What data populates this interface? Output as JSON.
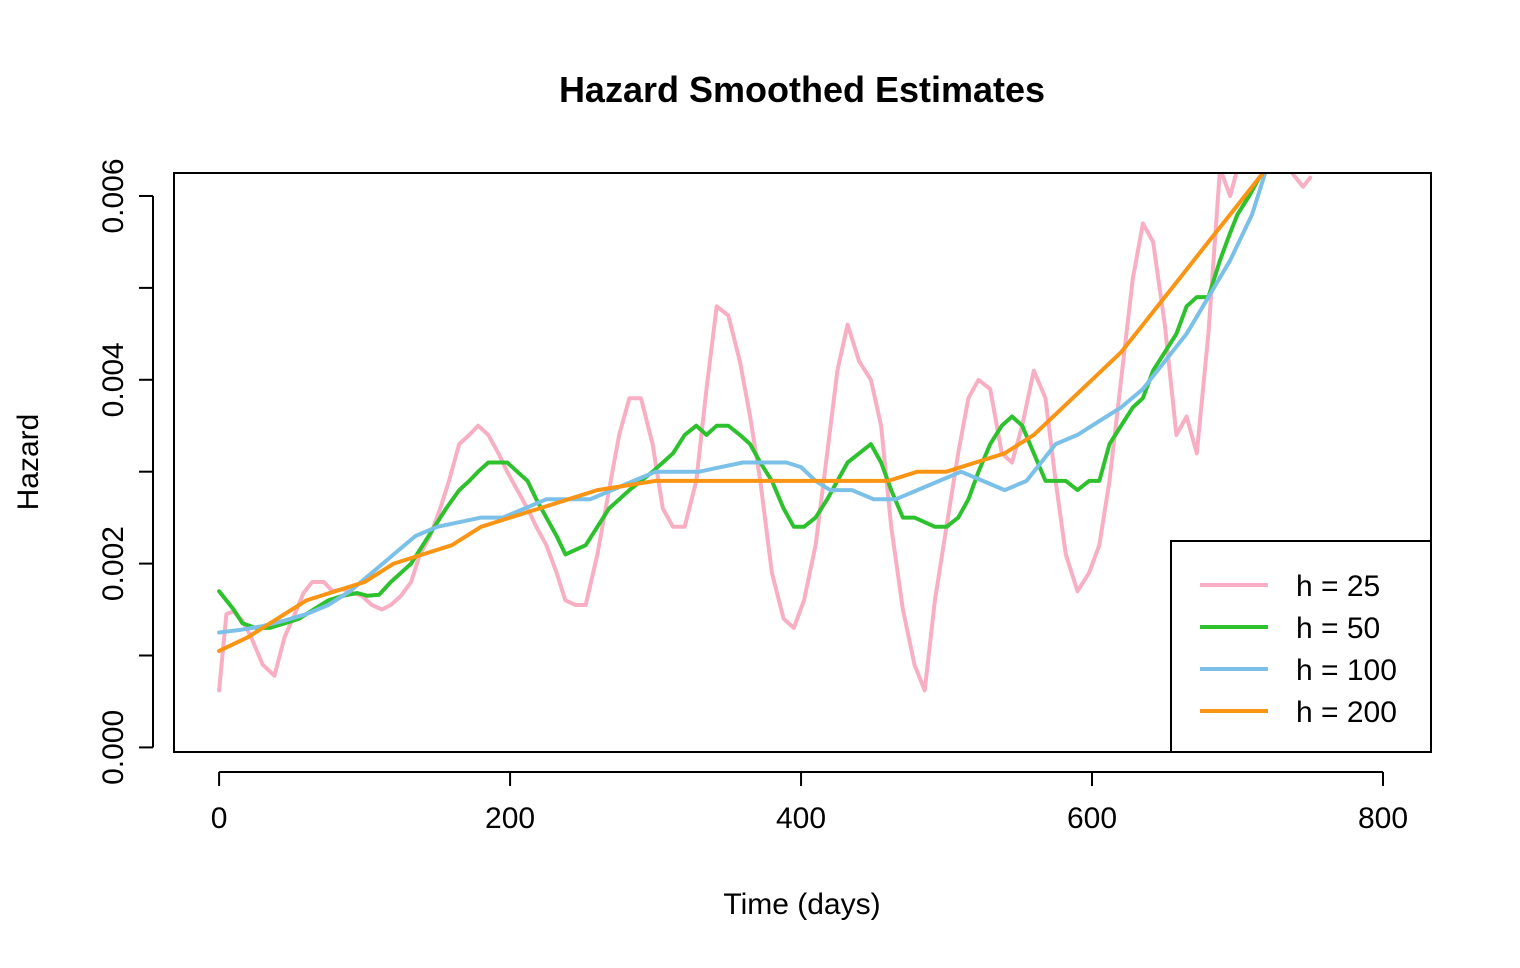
{
  "chart_data": {
    "type": "line",
    "title": "Hazard Smoothed Estimates",
    "xlabel": "Time (days)",
    "ylabel": "Hazard",
    "xlim": [
      -31,
      833
    ],
    "ylim": [
      -5e-05,
      0.00625
    ],
    "x_ticks": [
      0,
      200,
      400,
      600,
      800
    ],
    "x_tick_labels": [
      "0",
      "200",
      "400",
      "600",
      "800"
    ],
    "y_ticks": [
      0,
      0.001,
      0.002,
      0.003,
      0.004,
      0.005,
      0.006
    ],
    "y_tick_labels": [
      "0.000",
      "",
      "0.002",
      "",
      "0.004",
      "",
      "0.006"
    ],
    "grid": false,
    "legend": {
      "position": "bottom-right"
    },
    "series": [
      {
        "name": "h = 25",
        "color": "#F8AFC3",
        "x": [
          0,
          5,
          10,
          16,
          22,
          30,
          38,
          45,
          52,
          58,
          64,
          72,
          78,
          85,
          92,
          98,
          105,
          112,
          118,
          125,
          132,
          138,
          145,
          152,
          158,
          165,
          172,
          178,
          185,
          192,
          198,
          205,
          212,
          218,
          225,
          232,
          238,
          245,
          252,
          260,
          268,
          275,
          282,
          290,
          298,
          305,
          312,
          320,
          328,
          335,
          342,
          350,
          358,
          365,
          372,
          380,
          388,
          395,
          402,
          410,
          418,
          425,
          432,
          440,
          448,
          455,
          462,
          470,
          478,
          485,
          492,
          500,
          508,
          515,
          522,
          530,
          538,
          545,
          552,
          560,
          568,
          575,
          582,
          590,
          598,
          605,
          612,
          620,
          628,
          635,
          642,
          650,
          658,
          665,
          672,
          680,
          688,
          695,
          700,
          708,
          715,
          722,
          735,
          745,
          750
        ],
        "values": [
          0.00062,
          0.00145,
          0.00148,
          0.00138,
          0.0012,
          0.0009,
          0.00078,
          0.0012,
          0.00145,
          0.00168,
          0.0018,
          0.0018,
          0.0017,
          0.00172,
          0.00168,
          0.00165,
          0.00155,
          0.0015,
          0.00155,
          0.00165,
          0.0018,
          0.0021,
          0.0023,
          0.0026,
          0.0029,
          0.0033,
          0.0034,
          0.0035,
          0.0034,
          0.0032,
          0.003,
          0.0028,
          0.0026,
          0.0024,
          0.0022,
          0.0019,
          0.0016,
          0.00155,
          0.00155,
          0.0021,
          0.0028,
          0.0034,
          0.0038,
          0.0038,
          0.0033,
          0.0026,
          0.0024,
          0.0024,
          0.0029,
          0.0039,
          0.0048,
          0.0047,
          0.0042,
          0.0036,
          0.0029,
          0.0019,
          0.0014,
          0.0013,
          0.0016,
          0.0022,
          0.0032,
          0.0041,
          0.0046,
          0.0042,
          0.004,
          0.0035,
          0.0024,
          0.0015,
          0.0009,
          0.00062,
          0.0016,
          0.0024,
          0.0032,
          0.0038,
          0.004,
          0.0039,
          0.0032,
          0.0031,
          0.0035,
          0.0041,
          0.0038,
          0.0029,
          0.0021,
          0.0017,
          0.0019,
          0.0022,
          0.0029,
          0.004,
          0.0051,
          0.0057,
          0.0055,
          0.0046,
          0.0034,
          0.0036,
          0.0032,
          0.0045,
          0.0063,
          0.006,
          0.0063,
          0.0063,
          0.0063,
          0.0063,
          0.0063,
          0.0061,
          0.0062
        ]
      },
      {
        "name": "h = 50",
        "color": "#2DC22D",
        "x": [
          0,
          10,
          16,
          25,
          35,
          45,
          55,
          65,
          75,
          85,
          95,
          102,
          110,
          118,
          125,
          132,
          140,
          148,
          156,
          165,
          172,
          178,
          185,
          192,
          198,
          205,
          212,
          218,
          225,
          232,
          238,
          245,
          252,
          260,
          268,
          275,
          282,
          290,
          298,
          305,
          312,
          320,
          328,
          335,
          342,
          350,
          358,
          365,
          372,
          380,
          388,
          395,
          402,
          410,
          418,
          425,
          432,
          440,
          448,
          455,
          462,
          470,
          478,
          485,
          492,
          500,
          508,
          515,
          522,
          530,
          538,
          545,
          552,
          560,
          568,
          575,
          582,
          590,
          598,
          605,
          612,
          620,
          628,
          635,
          642,
          650,
          658,
          665,
          672,
          680,
          688,
          695,
          700,
          708,
          715,
          722
        ],
        "values": [
          0.0017,
          0.0015,
          0.00135,
          0.0013,
          0.0013,
          0.00135,
          0.0014,
          0.0015,
          0.0016,
          0.00165,
          0.00168,
          0.00165,
          0.00166,
          0.0018,
          0.0019,
          0.002,
          0.0022,
          0.0024,
          0.0026,
          0.0028,
          0.0029,
          0.003,
          0.0031,
          0.0031,
          0.0031,
          0.003,
          0.0029,
          0.0027,
          0.0025,
          0.0023,
          0.0021,
          0.00215,
          0.0022,
          0.0024,
          0.0026,
          0.0027,
          0.0028,
          0.0029,
          0.003,
          0.0031,
          0.0032,
          0.0034,
          0.0035,
          0.0034,
          0.0035,
          0.0035,
          0.0034,
          0.0033,
          0.0031,
          0.0029,
          0.0026,
          0.0024,
          0.0024,
          0.0025,
          0.0027,
          0.0029,
          0.0031,
          0.0032,
          0.0033,
          0.0031,
          0.0028,
          0.0025,
          0.0025,
          0.00245,
          0.0024,
          0.0024,
          0.0025,
          0.0027,
          0.003,
          0.0033,
          0.0035,
          0.0036,
          0.0035,
          0.0032,
          0.0029,
          0.0029,
          0.0029,
          0.0028,
          0.0029,
          0.0029,
          0.0033,
          0.0035,
          0.0037,
          0.0038,
          0.0041,
          0.0043,
          0.0045,
          0.0048,
          0.0049,
          0.0049,
          0.0053,
          0.0056,
          0.0058,
          0.006,
          0.0062,
          0.0063
        ]
      },
      {
        "name": "h = 100",
        "color": "#7BC0E8",
        "x": [
          0,
          15,
          30,
          45,
          60,
          75,
          90,
          105,
          120,
          135,
          150,
          165,
          180,
          195,
          210,
          225,
          240,
          255,
          270,
          285,
          300,
          315,
          330,
          345,
          360,
          375,
          390,
          400,
          410,
          420,
          435,
          450,
          465,
          480,
          495,
          510,
          525,
          540,
          555,
          565,
          575,
          590,
          600,
          610,
          620,
          635,
          650,
          665,
          680,
          695,
          710,
          720
        ],
        "values": [
          0.00125,
          0.00128,
          0.00132,
          0.00138,
          0.00145,
          0.00155,
          0.0017,
          0.0019,
          0.0021,
          0.0023,
          0.0024,
          0.00245,
          0.0025,
          0.0025,
          0.0026,
          0.0027,
          0.0027,
          0.0027,
          0.0028,
          0.0029,
          0.003,
          0.003,
          0.003,
          0.00305,
          0.0031,
          0.0031,
          0.0031,
          0.00305,
          0.0029,
          0.0028,
          0.0028,
          0.0027,
          0.0027,
          0.0028,
          0.0029,
          0.003,
          0.0029,
          0.0028,
          0.0029,
          0.0031,
          0.0033,
          0.0034,
          0.0035,
          0.0036,
          0.0037,
          0.0039,
          0.0042,
          0.0045,
          0.0049,
          0.0053,
          0.0058,
          0.0063
        ]
      },
      {
        "name": "h = 200",
        "color": "#FA9414",
        "x": [
          0,
          20,
          40,
          60,
          80,
          100,
          120,
          140,
          160,
          180,
          200,
          220,
          240,
          260,
          280,
          300,
          320,
          340,
          360,
          380,
          400,
          420,
          440,
          460,
          480,
          500,
          520,
          540,
          560,
          580,
          600,
          620,
          640,
          660,
          680,
          700,
          720
        ],
        "values": [
          0.00105,
          0.0012,
          0.0014,
          0.0016,
          0.0017,
          0.0018,
          0.002,
          0.0021,
          0.0022,
          0.0024,
          0.0025,
          0.0026,
          0.0027,
          0.0028,
          0.00285,
          0.0029,
          0.0029,
          0.0029,
          0.0029,
          0.0029,
          0.0029,
          0.0029,
          0.0029,
          0.0029,
          0.003,
          0.003,
          0.0031,
          0.0032,
          0.0034,
          0.0037,
          0.004,
          0.0043,
          0.0047,
          0.0051,
          0.0055,
          0.0059,
          0.0063
        ]
      }
    ]
  }
}
